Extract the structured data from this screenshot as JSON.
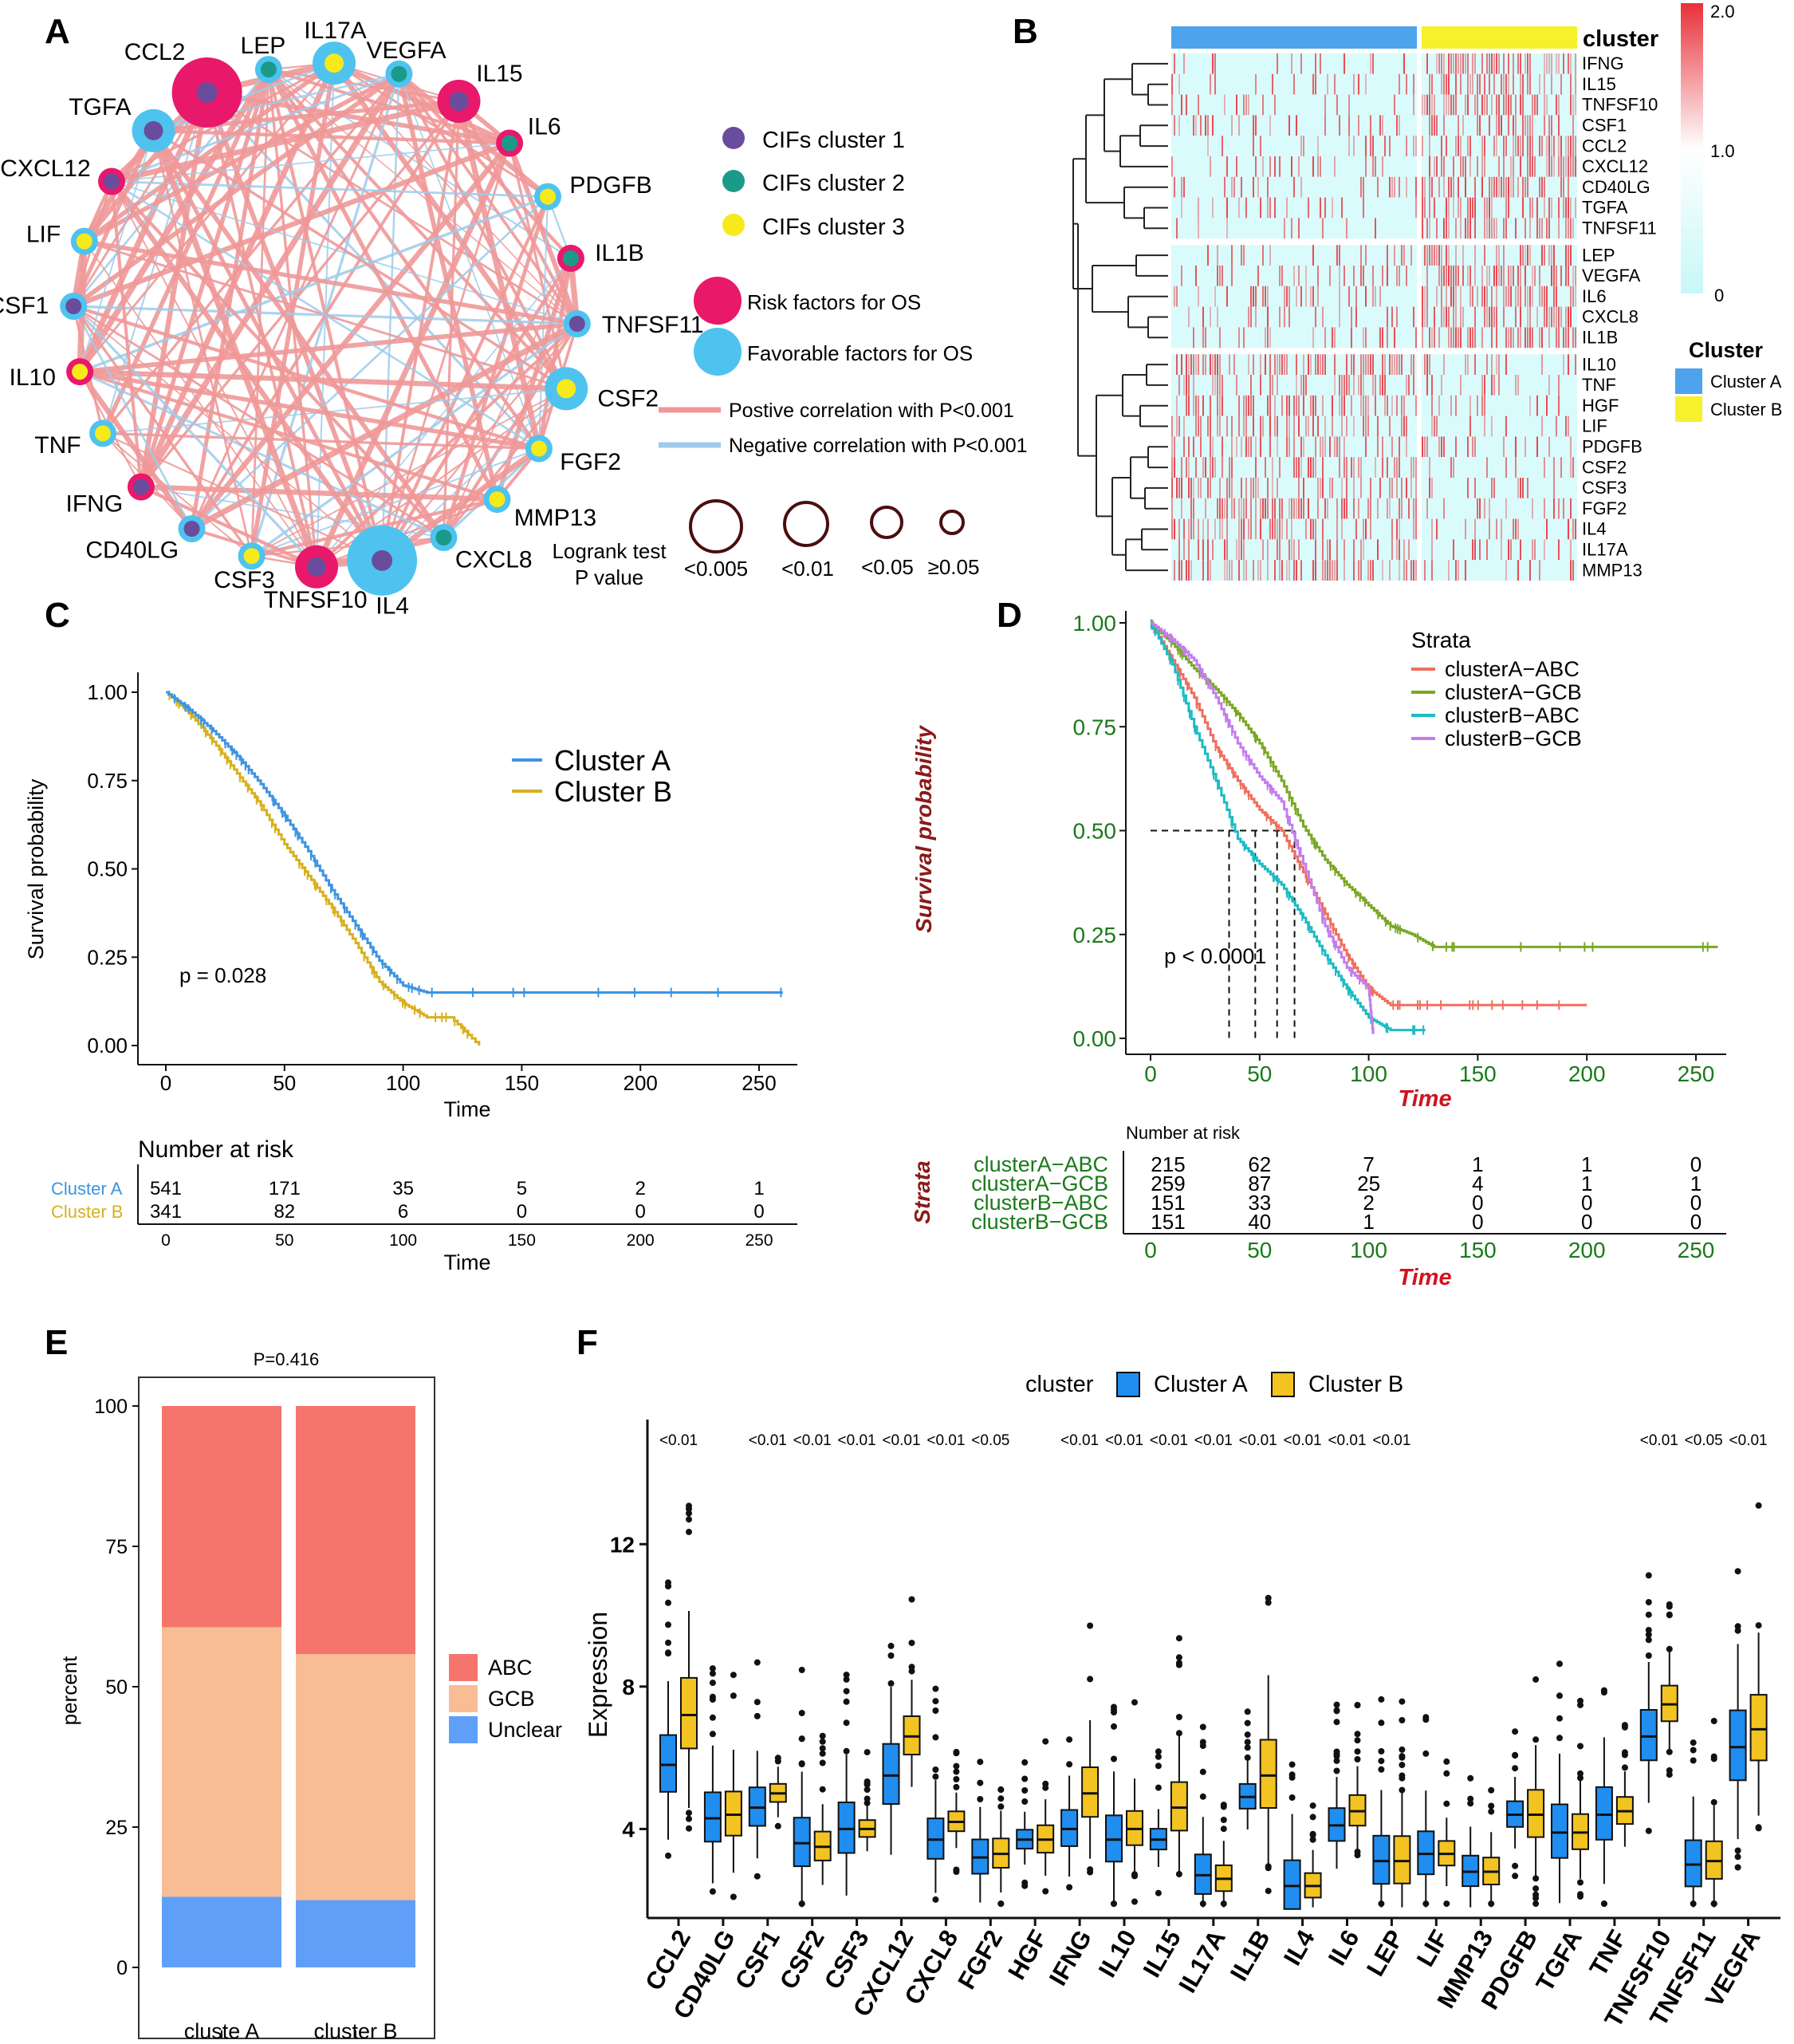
{
  "panels": {
    "A": "A",
    "B": "B",
    "C": "C",
    "D": "D",
    "E": "E",
    "F": "F"
  },
  "colors": {
    "risk": "#e8186b",
    "favorable": "#4ec3ef",
    "cif1": "#6a4c9c",
    "cif2": "#1b9a8a",
    "cif3": "#f6ea1a",
    "pos": "#ef9898",
    "neg": "#9ecbea",
    "ringline": "#4a0e0e",
    "clusterA": "#3d94e0",
    "clusterB": "#d7b01e",
    "hmA": "#4da3ec",
    "hmB": "#f6f12c",
    "hmLow": "#d9fbfb",
    "hmHigh": "#e8303a",
    "kmA_ABC": "#ef6f5e",
    "kmA_GCB": "#79a824",
    "kmB_ABC": "#1dbbc2",
    "kmB_GCB": "#c27ded",
    "green": "#1a7a1a",
    "darkred": "#8b1a1a",
    "red": "#d0141f",
    "abc": "#f5756d",
    "gcb": "#f8bd94",
    "unclear": "#5f9ff7",
    "boxA": "#1f8ef0",
    "boxB": "#f3c321"
  },
  "network": {
    "nodes": [
      {
        "name": "CCL2",
        "outer": "risk",
        "inner": "cif1",
        "size": "lg"
      },
      {
        "name": "LEP",
        "outer": "favorable",
        "inner": "cif2",
        "size": "sm"
      },
      {
        "name": "IL17A",
        "outer": "favorable",
        "inner": "cif3",
        "size": "md"
      },
      {
        "name": "VEGFA",
        "outer": "favorable",
        "inner": "cif2",
        "size": "sm"
      },
      {
        "name": "IL15",
        "outer": "risk",
        "inner": "cif1",
        "size": "md"
      },
      {
        "name": "IL6",
        "outer": "risk",
        "inner": "cif2",
        "size": "sm"
      },
      {
        "name": "PDGFB",
        "outer": "favorable",
        "inner": "cif3",
        "size": "sm"
      },
      {
        "name": "IL1B",
        "outer": "risk",
        "inner": "cif2",
        "size": "sm"
      },
      {
        "name": "TNFSF11",
        "outer": "favorable",
        "inner": "cif1",
        "size": "sm"
      },
      {
        "name": "CSF2",
        "outer": "favorable",
        "inner": "cif3",
        "size": "md"
      },
      {
        "name": "FGF2",
        "outer": "favorable",
        "inner": "cif3",
        "size": "sm"
      },
      {
        "name": "MMP13",
        "outer": "favorable",
        "inner": "cif3",
        "size": "sm"
      },
      {
        "name": "CXCL8",
        "outer": "favorable",
        "inner": "cif2",
        "size": "sm"
      },
      {
        "name": "IL4",
        "outer": "favorable",
        "inner": "cif1",
        "size": "lg"
      },
      {
        "name": "TNFSF10",
        "outer": "risk",
        "inner": "cif1",
        "size": "md"
      },
      {
        "name": "CSF3",
        "outer": "favorable",
        "inner": "cif3",
        "size": "sm"
      },
      {
        "name": "CD40LG",
        "outer": "favorable",
        "inner": "cif1",
        "size": "sm"
      },
      {
        "name": "IFNG",
        "outer": "risk",
        "inner": "cif1",
        "size": "sm"
      },
      {
        "name": "TNF",
        "outer": "favorable",
        "inner": "cif3",
        "size": "sm"
      },
      {
        "name": "IL10",
        "outer": "risk",
        "inner": "cif3",
        "size": "sm"
      },
      {
        "name": "CSF1",
        "outer": "favorable",
        "inner": "cif1",
        "size": "sm"
      },
      {
        "name": "LIF",
        "outer": "favorable",
        "inner": "cif3",
        "size": "sm"
      },
      {
        "name": "CXCL12",
        "outer": "risk",
        "inner": "cif1",
        "size": "sm"
      },
      {
        "name": "TGFA",
        "outer": "favorable",
        "inner": "cif1",
        "size": "md"
      }
    ],
    "legend": {
      "cif1": "CIFs cluster 1",
      "cif2": "CIFs cluster 2",
      "cif3": "CIFs cluster 3",
      "risk": "Risk factors for OS",
      "favorable": "Favorable factors for OS",
      "pos": "Postive correlation with P<0.001",
      "neg": "Negative correlation with P<0.001",
      "logrank_title_1": "Logrank test",
      "logrank_title_2": "P value",
      "p_levels": [
        "<0.005",
        "<0.01",
        "<0.05",
        "≥0.05"
      ]
    }
  },
  "heatmap": {
    "genes": [
      "IFNG",
      "IL15",
      "TNFSF10",
      "CSF1",
      "CCL2",
      "CXCL12",
      "CD40LG",
      "TGFA",
      "TNFSF11",
      "LEP",
      "VEGFA",
      "IL6",
      "CXCL8",
      "IL1B",
      "IL10",
      "TNF",
      "HGF",
      "LIF",
      "PDGFB",
      "CSF2",
      "CSF3",
      "FGF2",
      "IL4",
      "IL17A",
      "MMP13"
    ],
    "group_breaks": [
      9,
      14
    ],
    "annotation_label": "cluster",
    "scale_ticks": [
      "2.0",
      "1.0",
      "0"
    ],
    "legend_title": "Cluster",
    "legend_items": [
      "Cluster A",
      "Cluster B"
    ]
  },
  "km_c": {
    "ylabel": "Survival probability",
    "xlabel": "Time",
    "yticks": [
      "1.00",
      "0.75",
      "0.50",
      "0.25",
      "0.00"
    ],
    "xticks": [
      "0",
      "50",
      "100",
      "150",
      "200",
      "250"
    ],
    "legend": [
      "Cluster A",
      "Cluster B"
    ],
    "pvalue": "p = 0.028",
    "risk_title": "Number at risk",
    "risk_labels": [
      "Cluster A",
      "Cluster B"
    ],
    "risk_rows": [
      [
        "541",
        "171",
        "35",
        "5",
        "2",
        "1"
      ],
      [
        "341",
        "82",
        "6",
        "0",
        "0",
        "0"
      ]
    ]
  },
  "km_d": {
    "ylabel": "Survival probability",
    "xlabel": "Time",
    "yticks": [
      "1.00",
      "0.75",
      "0.50",
      "0.25",
      "0.00"
    ],
    "xticks": [
      "0",
      "50",
      "100",
      "150",
      "200",
      "250"
    ],
    "legend_title": "Strata",
    "legend": [
      "clusterA−ABC",
      "clusterA−GCB",
      "clusterB−ABC",
      "clusterB−GCB"
    ],
    "pvalue": "p < 0.0001",
    "risk_title": "Number at risk",
    "strata_label": "Strata",
    "risk_rows": [
      [
        "215",
        "62",
        "7",
        "1",
        "1",
        "0"
      ],
      [
        "259",
        "87",
        "25",
        "4",
        "1",
        "1"
      ],
      [
        "151",
        "33",
        "2",
        "0",
        "0",
        "0"
      ],
      [
        "151",
        "40",
        "1",
        "0",
        "0",
        "0"
      ]
    ]
  },
  "chart_data": [
    {
      "type": "line",
      "title": "C",
      "xlabel": "Time",
      "ylabel": "Survival probability",
      "xlim": [
        0,
        260
      ],
      "ylim": [
        0,
        1
      ],
      "series": [
        {
          "name": "Cluster A",
          "x": [
            0,
            10,
            20,
            30,
            40,
            50,
            60,
            70,
            80,
            90,
            100,
            110,
            150,
            200,
            260
          ],
          "values": [
            1.0,
            0.95,
            0.89,
            0.82,
            0.74,
            0.65,
            0.55,
            0.44,
            0.34,
            0.24,
            0.17,
            0.15,
            0.15,
            0.15,
            0.15
          ]
        },
        {
          "name": "Cluster B",
          "x": [
            0,
            10,
            20,
            30,
            40,
            50,
            60,
            70,
            80,
            90,
            100,
            110,
            120,
            132
          ],
          "values": [
            1.0,
            0.94,
            0.86,
            0.77,
            0.68,
            0.57,
            0.48,
            0.39,
            0.29,
            0.18,
            0.12,
            0.08,
            0.08,
            0.0
          ]
        }
      ],
      "annotation": "p = 0.028"
    },
    {
      "type": "line",
      "title": "D",
      "xlabel": "Time",
      "ylabel": "Survival probability",
      "xlim": [
        0,
        260
      ],
      "ylim": [
        0,
        1
      ],
      "series": [
        {
          "name": "clusterA−ABC",
          "x": [
            0,
            10,
            20,
            30,
            40,
            50,
            60,
            70,
            80,
            90,
            100,
            110,
            120,
            130,
            150,
            170,
            200
          ],
          "values": [
            1.0,
            0.91,
            0.82,
            0.7,
            0.62,
            0.55,
            0.5,
            0.4,
            0.3,
            0.2,
            0.12,
            0.08,
            0.08,
            0.08,
            0.08,
            0.08,
            0.08
          ]
        },
        {
          "name": "clusterA−GCB",
          "x": [
            0,
            10,
            20,
            30,
            40,
            50,
            60,
            70,
            80,
            90,
            100,
            110,
            120,
            130,
            150,
            200,
            260
          ],
          "values": [
            1.0,
            0.95,
            0.89,
            0.84,
            0.78,
            0.71,
            0.62,
            0.51,
            0.43,
            0.37,
            0.32,
            0.27,
            0.25,
            0.22,
            0.22,
            0.22,
            0.22
          ]
        },
        {
          "name": "clusterB−ABC",
          "x": [
            0,
            10,
            20,
            30,
            40,
            50,
            60,
            70,
            80,
            90,
            100,
            110,
            126
          ],
          "values": [
            1.0,
            0.9,
            0.75,
            0.62,
            0.48,
            0.42,
            0.37,
            0.29,
            0.2,
            0.12,
            0.05,
            0.02,
            0.02
          ]
        },
        {
          "name": "clusterB−GCB",
          "x": [
            0,
            10,
            20,
            30,
            40,
            50,
            60,
            70,
            80,
            90,
            100,
            102
          ],
          "values": [
            1.0,
            0.96,
            0.91,
            0.82,
            0.71,
            0.63,
            0.57,
            0.42,
            0.27,
            0.17,
            0.12,
            0.01
          ]
        }
      ],
      "annotation": "p < 0.0001"
    },
    {
      "type": "bar",
      "title": "P=0.416",
      "ylabel": "percent",
      "categories": [
        "cluste A",
        "cluster B"
      ],
      "series": [
        {
          "name": "Unclear",
          "values": [
            12.6,
            12.0
          ]
        },
        {
          "name": "GCB",
          "values": [
            48.0,
            43.8
          ]
        },
        {
          "name": "ABC",
          "values": [
            39.4,
            44.2
          ]
        }
      ],
      "ylim": [
        0,
        100
      ],
      "yticks": [
        "0",
        "25",
        "50",
        "75",
        "100"
      ]
    },
    {
      "type": "box",
      "ylabel": "Expression",
      "legend_title": "cluster",
      "legend": [
        "Cluster A",
        "Cluster B"
      ],
      "categories": [
        "CCL2",
        "CD40LG",
        "CSF1",
        "CSF2",
        "CSF3",
        "CXCL12",
        "CXCL8",
        "FGF2",
        "HGF",
        "IFNG",
        "IL10",
        "IL15",
        "IL17A",
        "IL1B",
        "IL4",
        "IL6",
        "LEP",
        "LIF",
        "MMP13",
        "PDGFB",
        "TGFA",
        "TNF",
        "TNFSF10",
        "TNFSF11",
        "VEGFA"
      ],
      "pvalues": [
        "<0.01",
        "",
        "<0.01",
        "<0.01",
        "<0.01",
        "<0.01",
        "<0.01",
        "<0.05",
        "",
        "<0.01",
        "<0.01",
        "<0.01",
        "<0.01",
        "<0.01",
        "<0.01",
        "<0.01",
        "<0.01",
        "",
        "",
        "",
        "",
        "",
        "<0.01",
        "<0.05",
        "<0.01"
      ],
      "medianA": [
        5.8,
        4.3,
        4.6,
        3.6,
        4.0,
        5.5,
        3.7,
        3.2,
        3.7,
        4.0,
        3.7,
        3.7,
        2.7,
        4.9,
        2.4,
        4.1,
        3.1,
        3.3,
        2.8,
        4.4,
        3.9,
        4.4,
        6.6,
        3.0,
        6.3
      ],
      "medianB": [
        7.2,
        4.4,
        5.0,
        3.5,
        4.0,
        6.6,
        4.2,
        3.3,
        3.7,
        5.0,
        4.0,
        4.6,
        2.6,
        5.5,
        2.4,
        4.5,
        3.1,
        3.3,
        2.8,
        4.4,
        3.9,
        4.5,
        7.5,
        3.1,
        6.8
      ],
      "ylim": [
        1.5,
        15.5
      ],
      "yticks": [
        "4",
        "8",
        "12"
      ]
    }
  ],
  "bar_e": {
    "title": "P=0.416",
    "ylabel": "percent",
    "legend": [
      "ABC",
      "GCB",
      "Unclear"
    ],
    "categories": [
      "cluste A",
      "cluster B"
    ],
    "yticks": [
      "0",
      "25",
      "50",
      "75",
      "100"
    ]
  },
  "box_f": {
    "legend_title": "cluster",
    "legend": [
      "Cluster A",
      "Cluster B"
    ],
    "ylabel": "Expression",
    "yticks": [
      "4",
      "8",
      "12"
    ]
  }
}
